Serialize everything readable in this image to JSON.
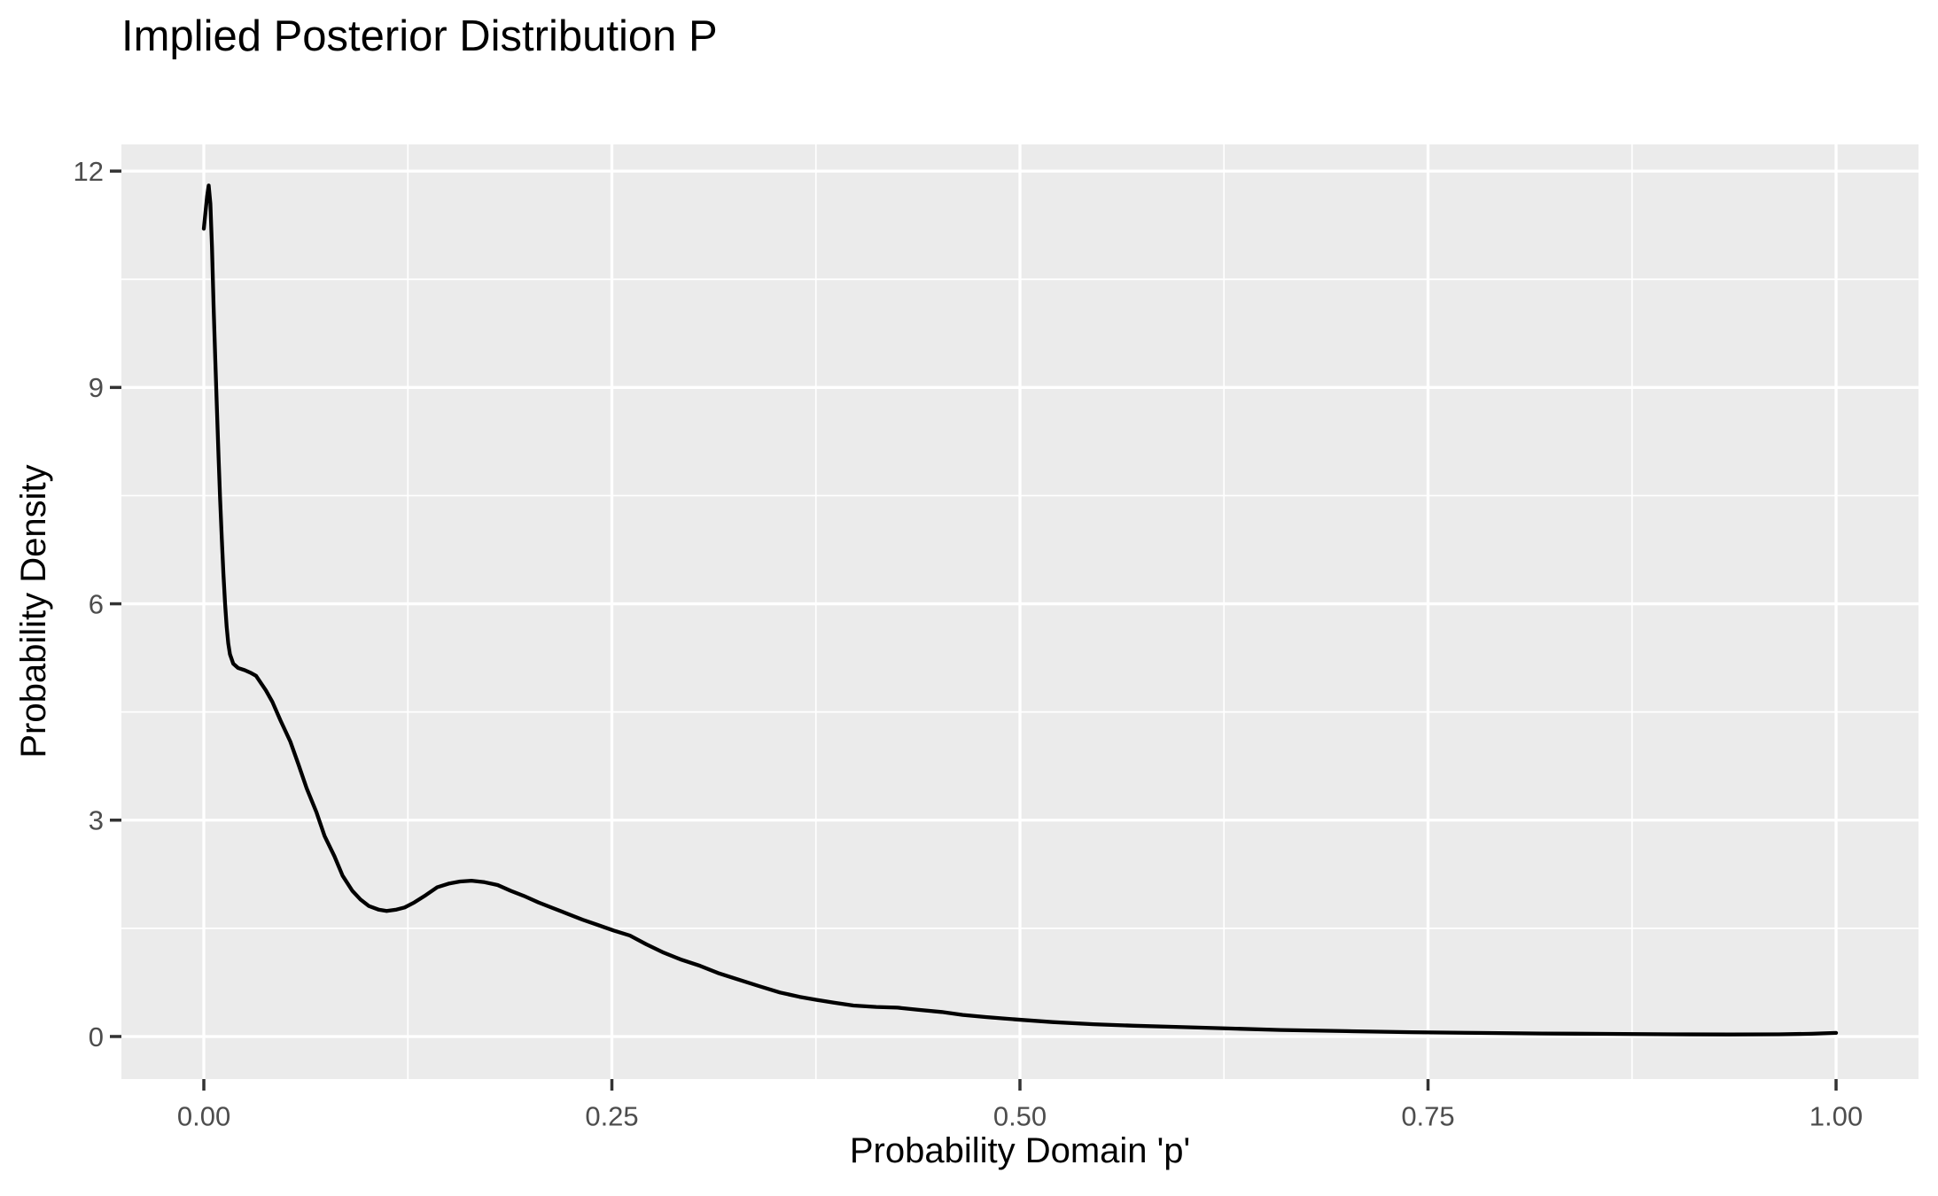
{
  "figure": {
    "title": "Implied Posterior Distribution P",
    "x_axis": {
      "label": "Probability Domain 'p'"
    },
    "y_axis": {
      "label": "Probability Density"
    }
  },
  "colors": {
    "figure_background": "#FFFFFF",
    "panel_background": "#EBEBEB",
    "grid_line": "#FFFFFF",
    "curve": "#000000",
    "tick_mark": "#333333",
    "tick_label_text": "#4D4D4D",
    "title_text": "#000000"
  },
  "chart_data": {
    "type": "line",
    "subtype": "density-curve",
    "title": "Implied Posterior Distribution P",
    "xlabel": "Probability Domain 'p'",
    "ylabel": "Probability Density",
    "xlim": [
      -0.0505,
      1.0505
    ],
    "ylim": [
      -0.59,
      12.37
    ],
    "x_major_ticks": [
      0,
      0.25,
      0.5,
      0.75,
      1.0
    ],
    "x_tick_labels": [
      "0.00",
      "0.25",
      "0.50",
      "0.75",
      "1.00"
    ],
    "x_minor_ticks": [
      0.125,
      0.375,
      0.625,
      0.875
    ],
    "y_major_ticks": [
      0,
      3,
      6,
      9,
      12
    ],
    "y_tick_labels": [
      "0",
      "3",
      "6",
      "9",
      "12"
    ],
    "y_minor_ticks": [
      1.5,
      4.5,
      7.5,
      10.5
    ],
    "grid": "white major+minor gridlines on gray panel",
    "legend": "none",
    "series": [
      {
        "name": "posterior-density-of-p",
        "color": "#000000",
        "peak": {
          "x": 0.003,
          "y": 11.8
        },
        "local_min": {
          "x": 0.112,
          "y": 1.74
        },
        "local_max": {
          "x": 0.164,
          "y": 2.16
        },
        "x": [
          0.0,
          0.002,
          0.003,
          0.004,
          0.005,
          0.006,
          0.007,
          0.008,
          0.009,
          0.01,
          0.011,
          0.012,
          0.013,
          0.014,
          0.015,
          0.016,
          0.018,
          0.021,
          0.025,
          0.029,
          0.032,
          0.035,
          0.038,
          0.042,
          0.047,
          0.053,
          0.058,
          0.063,
          0.069,
          0.074,
          0.08,
          0.085,
          0.091,
          0.096,
          0.101,
          0.107,
          0.112,
          0.118,
          0.123,
          0.129,
          0.136,
          0.143,
          0.15,
          0.157,
          0.164,
          0.172,
          0.18,
          0.188,
          0.196,
          0.205,
          0.214,
          0.223,
          0.232,
          0.241,
          0.251,
          0.261,
          0.271,
          0.281,
          0.292,
          0.304,
          0.315,
          0.326,
          0.34,
          0.353,
          0.365,
          0.375,
          0.386,
          0.398,
          0.412,
          0.425,
          0.438,
          0.452,
          0.465,
          0.479,
          0.49,
          0.501,
          0.52,
          0.545,
          0.57,
          0.6,
          0.63,
          0.66,
          0.7,
          0.74,
          0.78,
          0.82,
          0.86,
          0.9,
          0.935,
          0.965,
          0.985,
          1.0
        ],
        "y": [
          11.2,
          11.65,
          11.8,
          11.55,
          10.95,
          10.1,
          9.4,
          8.7,
          8.05,
          7.45,
          6.9,
          6.42,
          6.0,
          5.68,
          5.45,
          5.3,
          5.17,
          5.11,
          5.08,
          5.04,
          5.0,
          4.9,
          4.8,
          4.64,
          4.38,
          4.09,
          3.77,
          3.44,
          3.11,
          2.78,
          2.5,
          2.23,
          2.02,
          1.9,
          1.81,
          1.76,
          1.74,
          1.76,
          1.79,
          1.86,
          1.96,
          2.07,
          2.12,
          2.15,
          2.16,
          2.14,
          2.1,
          2.02,
          1.95,
          1.86,
          1.78,
          1.7,
          1.62,
          1.55,
          1.47,
          1.4,
          1.28,
          1.17,
          1.07,
          0.98,
          0.88,
          0.8,
          0.7,
          0.61,
          0.55,
          0.51,
          0.47,
          0.43,
          0.41,
          0.4,
          0.37,
          0.34,
          0.3,
          0.27,
          0.25,
          0.23,
          0.2,
          0.17,
          0.15,
          0.13,
          0.11,
          0.09,
          0.075,
          0.06,
          0.05,
          0.042,
          0.036,
          0.03,
          0.028,
          0.03,
          0.038,
          0.05
        ]
      }
    ]
  }
}
